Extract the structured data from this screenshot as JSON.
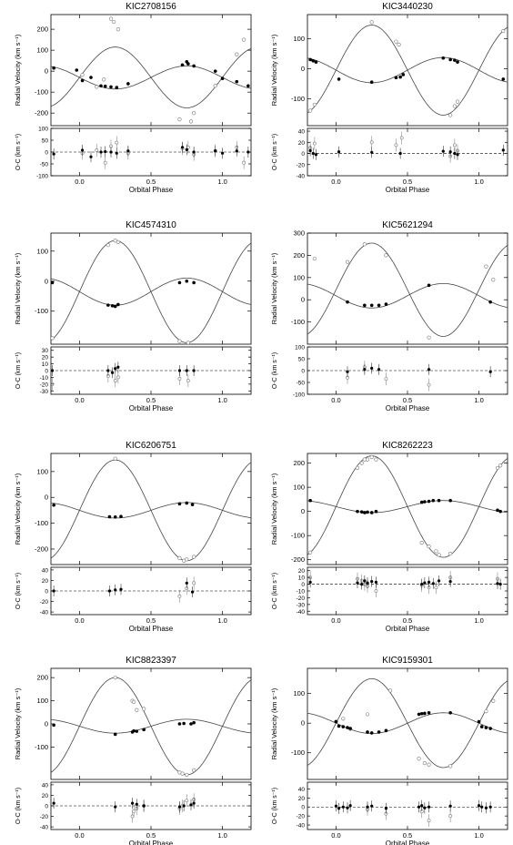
{
  "chart_data": [
    {
      "type": "scatter",
      "title": "KIC2708156",
      "xlabel": "Orbital Phase",
      "rv_ylabel": "Radial Velocity (km s⁻¹)",
      "oc_ylabel": "O-C (km s⁻¹)",
      "xlim": [
        -0.2,
        1.2
      ],
      "x_ticks": [
        "0.0",
        "0.5",
        "1.0"
      ],
      "rv_ylim": [
        -260,
        270
      ],
      "rv_ticks": [
        "200",
        "100",
        "0",
        "-100",
        "-200"
      ],
      "oc_ylim": [
        -100,
        100
      ],
      "oc_ticks": [
        "100",
        "50",
        "0",
        "-50",
        "-100"
      ],
      "primary": {
        "K": 145,
        "gamma": -30,
        "phase0": 0.25
      },
      "secondary": {
        "K": 55,
        "gamma": -30
      },
      "series": [
        {
          "points_x": [
            0.02,
            0.12,
            0.17,
            0.22,
            0.24,
            0.27,
            0.7,
            0.78,
            0.8,
            0.95,
            1.1,
            1.15
          ],
          "points_y": [
            -18,
            -75,
            -40,
            250,
            235,
            200,
            -230,
            -240,
            -200,
            -70,
            80,
            150
          ]
        },
        {
          "points_x": [
            -0.18,
            -0.02,
            0.02,
            0.08,
            0.15,
            0.18,
            0.22,
            0.26,
            0.34,
            0.72,
            0.75,
            0.76,
            0.8,
            0.95,
            1.0,
            1.1,
            1.18
          ],
          "points_y": [
            15,
            5,
            -45,
            -30,
            -70,
            -72,
            -75,
            -78,
            -60,
            30,
            45,
            35,
            25,
            0,
            -35,
            -50,
            -70
          ]
        },
        {
          "points_x": [
            0.02,
            0.12,
            0.18,
            0.22,
            0.26,
            0.34,
            0.72,
            0.76,
            0.8,
            0.95,
            1.1,
            1.15
          ],
          "points_y": [
            -5,
            8,
            -45,
            25,
            40,
            -5,
            15,
            20,
            -10,
            5,
            20,
            -45
          ]
        },
        {
          "points_x": [
            -0.18,
            0.02,
            0.08,
            0.15,
            0.18,
            0.22,
            0.26,
            0.34,
            0.72,
            0.75,
            0.8,
            0.95,
            1.0,
            1.1,
            1.18
          ],
          "points_y": [
            -8,
            8,
            -20,
            0,
            2,
            0,
            -5,
            5,
            20,
            10,
            0,
            5,
            -5,
            5,
            0
          ]
        }
      ]
    },
    {
      "type": "scatter",
      "title": "KIC3440230",
      "xlabel": "Orbital Phase",
      "rv_ylabel": "Radial Velocity (km s⁻¹)",
      "oc_ylabel": "O-C (km s⁻¹)",
      "xlim": [
        -0.2,
        1.2
      ],
      "x_ticks": [
        "0.0",
        "0.5",
        "1.0"
      ],
      "rv_ylim": [
        -190,
        180
      ],
      "rv_ticks": [
        "100",
        "0",
        "-100"
      ],
      "oc_ylim": [
        -40,
        45
      ],
      "oc_ticks": [
        "40",
        "20",
        "0",
        "-20",
        "-40"
      ],
      "primary": {
        "K": 150,
        "gamma": -5,
        "phase0": 0.25
      },
      "secondary": {
        "K": 42,
        "gamma": -5
      },
      "series": [
        {
          "points_x": [
            -0.18,
            -0.15,
            0.25,
            0.42,
            0.44,
            0.8,
            0.83,
            0.85,
            1.17
          ],
          "points_y": [
            -140,
            -120,
            155,
            90,
            80,
            -155,
            -125,
            -110,
            125
          ]
        },
        {
          "points_x": [
            -0.18,
            -0.16,
            -0.14,
            0.02,
            0.25,
            0.42,
            0.45,
            0.47,
            0.75,
            0.8,
            0.83,
            0.85,
            1.17
          ],
          "points_y": [
            30,
            26,
            22,
            -35,
            -45,
            -30,
            -28,
            -20,
            35,
            30,
            28,
            22,
            -35
          ]
        },
        {
          "points_x": [
            -0.18,
            -0.15,
            0.25,
            0.42,
            0.46,
            0.8,
            0.83,
            0.85
          ],
          "points_y": [
            10,
            18,
            20,
            15,
            28,
            -5,
            15,
            5
          ]
        },
        {
          "points_x": [
            -0.18,
            -0.16,
            -0.14,
            0.02,
            0.25,
            0.45,
            0.75,
            0.8,
            0.83,
            0.85,
            1.17
          ],
          "points_y": [
            5,
            0,
            -2,
            3,
            2,
            0,
            4,
            3,
            0,
            -2,
            6
          ]
        }
      ]
    },
    {
      "type": "scatter",
      "title": "KIC4574310",
      "xlabel": "Orbital Phase",
      "rv_ylabel": "Radial Velocity (km s⁻¹)",
      "oc_ylabel": "O-C (km s⁻¹)",
      "xlim": [
        -0.2,
        1.2
      ],
      "x_ticks": [
        "0.0",
        "0.5",
        "1.0"
      ],
      "rv_ylim": [
        -210,
        160
      ],
      "rv_ticks": [
        "100",
        "0",
        "-100"
      ],
      "oc_ylim": [
        -35,
        35
      ],
      "oc_ticks": [
        "30",
        "20",
        "10",
        "0",
        "-10",
        "-20",
        "-30"
      ],
      "primary": {
        "K": 170,
        "gamma": -35,
        "phase0": 0.25
      },
      "secondary": {
        "K": 45,
        "gamma": -35
      },
      "series": [
        {
          "points_x": [
            -0.19,
            0.2,
            0.25,
            0.27,
            0.7,
            0.76
          ],
          "points_y": [
            -190,
            120,
            135,
            130,
            -200,
            -205
          ]
        },
        {
          "points_x": [
            -0.19,
            0.2,
            0.23,
            0.25,
            0.27,
            0.7,
            0.75,
            0.8
          ],
          "points_y": [
            -5,
            -80,
            -82,
            -84,
            -78,
            -5,
            0,
            -5
          ]
        },
        {
          "points_x": [
            -0.19,
            0.2,
            0.25,
            0.27,
            0.7,
            0.76
          ],
          "points_y": [
            -20,
            -8,
            -15,
            -10,
            -12,
            -15
          ]
        },
        {
          "points_x": [
            -0.19,
            0.2,
            0.23,
            0.25,
            0.27,
            0.7,
            0.75,
            0.8
          ],
          "points_y": [
            0,
            0,
            -3,
            3,
            5,
            0,
            0,
            0
          ]
        }
      ]
    },
    {
      "type": "scatter",
      "title": "KIC5621294",
      "xlabel": "Orbital Phase",
      "rv_ylabel": "Radial Velocity (km s⁻¹)",
      "oc_ylabel": "O-C (km s⁻¹)",
      "xlim": [
        -0.2,
        1.2
      ],
      "x_ticks": [
        "0.0",
        "0.5",
        "1.0"
      ],
      "rv_ylim": [
        -200,
        300
      ],
      "rv_ticks": [
        "300",
        "200",
        "100",
        "0",
        "-100"
      ],
      "oc_ylim": [
        -100,
        100
      ],
      "oc_ticks": [
        "100",
        "50",
        "0",
        "-50",
        "-100"
      ],
      "primary": {
        "K": 210,
        "gamma": 45,
        "phase0": 0.25
      },
      "secondary": {
        "K": 55,
        "gamma": 18
      },
      "series": [
        {
          "points_x": [
            -0.15,
            0.08,
            0.2,
            0.35,
            0.65,
            1.05,
            1.1
          ],
          "points_y": [
            185,
            170,
            250,
            200,
            -170,
            150,
            90
          ]
        },
        {
          "points_x": [
            0.08,
            0.2,
            0.25,
            0.3,
            0.35,
            0.65,
            1.08
          ],
          "points_y": [
            -10,
            -25,
            -25,
            -25,
            -20,
            65,
            -10
          ]
        },
        {
          "points_x": [
            0.08,
            0.2,
            0.35,
            0.65
          ],
          "points_y": [
            -30,
            15,
            -35,
            -60
          ]
        },
        {
          "points_x": [
            0.08,
            0.2,
            0.25,
            0.3,
            0.65,
            1.08
          ],
          "points_y": [
            -5,
            5,
            10,
            5,
            5,
            -5
          ]
        }
      ]
    },
    {
      "type": "scatter",
      "title": "KIC6206751",
      "xlabel": "Orbital Phase",
      "rv_ylabel": "Radial Velocity (km s⁻¹)",
      "oc_ylabel": "O-C (km s⁻¹)",
      "xlim": [
        -0.2,
        1.2
      ],
      "x_ticks": [
        "0.0",
        "0.5",
        "1.0"
      ],
      "rv_ylim": [
        -260,
        170
      ],
      "rv_ticks": [
        "100",
        "0",
        "-100",
        "-200"
      ],
      "oc_ylim": [
        -45,
        45
      ],
      "oc_ticks": [
        "40",
        "20",
        "0",
        "-20",
        "-40"
      ],
      "primary": {
        "K": 195,
        "gamma": -50,
        "phase0": 0.25
      },
      "secondary": {
        "K": 30,
        "gamma": -50
      },
      "series": [
        {
          "points_x": [
            0.25,
            0.7,
            0.73,
            0.75,
            0.8
          ],
          "points_y": [
            150,
            -235,
            -245,
            -240,
            -230
          ]
        },
        {
          "points_x": [
            -0.18,
            0.21,
            0.25,
            0.29,
            0.7,
            0.75,
            0.79
          ],
          "points_y": [
            -30,
            -75,
            -76,
            -74,
            -25,
            -22,
            -28
          ]
        },
        {
          "points_x": [
            0.7,
            0.75,
            0.8
          ],
          "points_y": [
            -10,
            5,
            15
          ]
        },
        {
          "points_x": [
            -0.18,
            0.21,
            0.25,
            0.29,
            0.75,
            0.79
          ],
          "points_y": [
            0,
            0,
            2,
            3,
            15,
            -2
          ]
        }
      ]
    },
    {
      "type": "scatter",
      "title": "KIC8262223",
      "xlabel": "Orbital Phase",
      "rv_ylabel": "Radial Velocity (km s⁻¹)",
      "oc_ylabel": "O-C (km s⁻¹)",
      "xlim": [
        -0.2,
        1.2
      ],
      "x_ticks": [
        "0.0",
        "0.5",
        "1.0"
      ],
      "rv_ylim": [
        -220,
        240
      ],
      "rv_ticks": [
        "200",
        "100",
        "0",
        "-100",
        "-200"
      ],
      "oc_ylim": [
        -45,
        25
      ],
      "oc_ticks": [
        "20",
        "10",
        "0",
        "-10",
        "-20",
        "-30",
        "-40"
      ],
      "primary": {
        "K": 210,
        "gamma": 20,
        "phase0": 0.25
      },
      "secondary": {
        "K": 25,
        "gamma": 20
      },
      "series": [
        {
          "points_x": [
            -0.18,
            0.15,
            0.18,
            0.2,
            0.22,
            0.25,
            0.28,
            0.6,
            0.65,
            0.7,
            0.72,
            0.8,
            1.13,
            1.15
          ],
          "points_y": [
            -170,
            180,
            200,
            215,
            215,
            225,
            215,
            -130,
            -145,
            -165,
            -180,
            -175,
            180,
            190
          ]
        },
        {
          "points_x": [
            -0.18,
            0.15,
            0.18,
            0.2,
            0.22,
            0.25,
            0.28,
            0.6,
            0.62,
            0.65,
            0.68,
            0.72,
            0.8,
            1.13,
            1.15
          ],
          "points_y": [
            45,
            0,
            -2,
            -5,
            -3,
            -5,
            0,
            38,
            40,
            42,
            45,
            45,
            45,
            5,
            0
          ]
        },
        {
          "points_x": [
            -0.18,
            0.15,
            0.18,
            0.2,
            0.22,
            0.28,
            0.6,
            0.65,
            0.7,
            0.8,
            1.13
          ],
          "points_y": [
            10,
            8,
            5,
            0,
            -3,
            -10,
            -2,
            -5,
            -5,
            10,
            8
          ]
        },
        {
          "points_x": [
            -0.18,
            0.15,
            0.18,
            0.2,
            0.22,
            0.25,
            0.28,
            0.6,
            0.62,
            0.65,
            0.68,
            0.72,
            0.8,
            1.13,
            1.15
          ],
          "points_y": [
            3,
            2,
            0,
            5,
            2,
            4,
            3,
            0,
            2,
            3,
            1,
            5,
            4,
            1,
            0
          ]
        }
      ]
    },
    {
      "type": "scatter",
      "title": "KIC8823397",
      "xlabel": "Orbital Phase",
      "rv_ylabel": "Radial Velocity (km s⁻¹)",
      "oc_ylabel": "O-C (km s⁻¹)",
      "xlim": [
        -0.2,
        1.2
      ],
      "x_ticks": [
        "0.0",
        "0.5",
        "1.0"
      ],
      "rv_ylim": [
        -240,
        240
      ],
      "rv_ticks": [
        "200",
        "100",
        "0",
        "-100"
      ],
      "oc_ylim": [
        -45,
        45
      ],
      "oc_ticks": [
        "40",
        "20",
        "0",
        "-20",
        "-40"
      ],
      "primary": {
        "K": 210,
        "gamma": -10,
        "phase0": 0.25
      },
      "secondary": {
        "K": 30,
        "gamma": -10
      },
      "series": [
        {
          "points_x": [
            0.25,
            0.37,
            0.38,
            0.4,
            0.45,
            0.7,
            0.72,
            0.75,
            0.8
          ],
          "points_y": [
            200,
            100,
            95,
            60,
            65,
            -210,
            -215,
            -220,
            -200
          ]
        },
        {
          "points_x": [
            -0.18,
            0.25,
            0.37,
            0.38,
            0.4,
            0.45,
            0.7,
            0.73,
            0.78,
            0.8
          ],
          "points_y": [
            -5,
            -45,
            -35,
            -30,
            -32,
            -25,
            0,
            2,
            0,
            5
          ]
        },
        {
          "points_x": [
            0.37,
            0.38,
            0.4,
            0.45,
            0.7,
            0.72,
            0.75,
            0.8
          ],
          "points_y": [
            -20,
            -10,
            -5,
            0,
            -5,
            0,
            10,
            12
          ]
        },
        {
          "points_x": [
            -0.18,
            0.25,
            0.37,
            0.4,
            0.45,
            0.7,
            0.73,
            0.78,
            0.8
          ],
          "points_y": [
            5,
            -2,
            5,
            3,
            0,
            -2,
            0,
            2,
            5
          ]
        }
      ]
    },
    {
      "type": "scatter",
      "title": "KIC9159301",
      "xlabel": "Orbital Phase",
      "rv_ylabel": "Radial Velocity (km s⁻¹)",
      "oc_ylabel": "O-C (km s⁻¹)",
      "xlim": [
        -0.2,
        1.2
      ],
      "x_ticks": [
        "0.0",
        "0.5",
        "1.0"
      ],
      "rv_ylim": [
        -190,
        185
      ],
      "rv_ticks": [
        "100",
        "0",
        "-100"
      ],
      "oc_ylim": [
        -50,
        55
      ],
      "oc_ticks": [
        "40",
        "20",
        "0",
        "-20",
        "-40"
      ],
      "primary": {
        "K": 150,
        "gamma": 0,
        "phase0": 0.25
      },
      "secondary": {
        "K": 35,
        "gamma": 0
      },
      "series": [
        {
          "points_x": [
            0.0,
            0.05,
            0.1,
            0.22,
            0.38,
            0.58,
            0.62,
            0.65,
            0.8,
            1.05,
            1.1
          ],
          "points_y": [
            5,
            15,
            -20,
            30,
            110,
            -120,
            -135,
            -140,
            -145,
            40,
            75
          ]
        },
        {
          "points_x": [
            0.0,
            0.02,
            0.05,
            0.08,
            0.1,
            0.22,
            0.25,
            0.3,
            0.35,
            0.58,
            0.6,
            0.62,
            0.65,
            0.8,
            1.0,
            1.02,
            1.05,
            1.08
          ],
          "points_y": [
            5,
            -10,
            -12,
            -15,
            -18,
            -30,
            -33,
            -30,
            -25,
            30,
            32,
            33,
            35,
            35,
            5,
            -12,
            -15,
            -18
          ]
        },
        {
          "points_x": [
            0.22,
            0.35,
            0.6,
            0.65,
            0.8
          ],
          "points_y": [
            -5,
            -15,
            -10,
            -30,
            -20
          ]
        },
        {
          "points_x": [
            0.0,
            0.02,
            0.05,
            0.08,
            0.1,
            0.22,
            0.25,
            0.35,
            0.58,
            0.6,
            0.62,
            0.65,
            0.8,
            1.0,
            1.02,
            1.05,
            1.08
          ],
          "points_y": [
            2,
            -3,
            0,
            -2,
            3,
            0,
            2,
            -3,
            0,
            3,
            -2,
            0,
            2,
            3,
            0,
            -2,
            0
          ]
        }
      ]
    }
  ]
}
